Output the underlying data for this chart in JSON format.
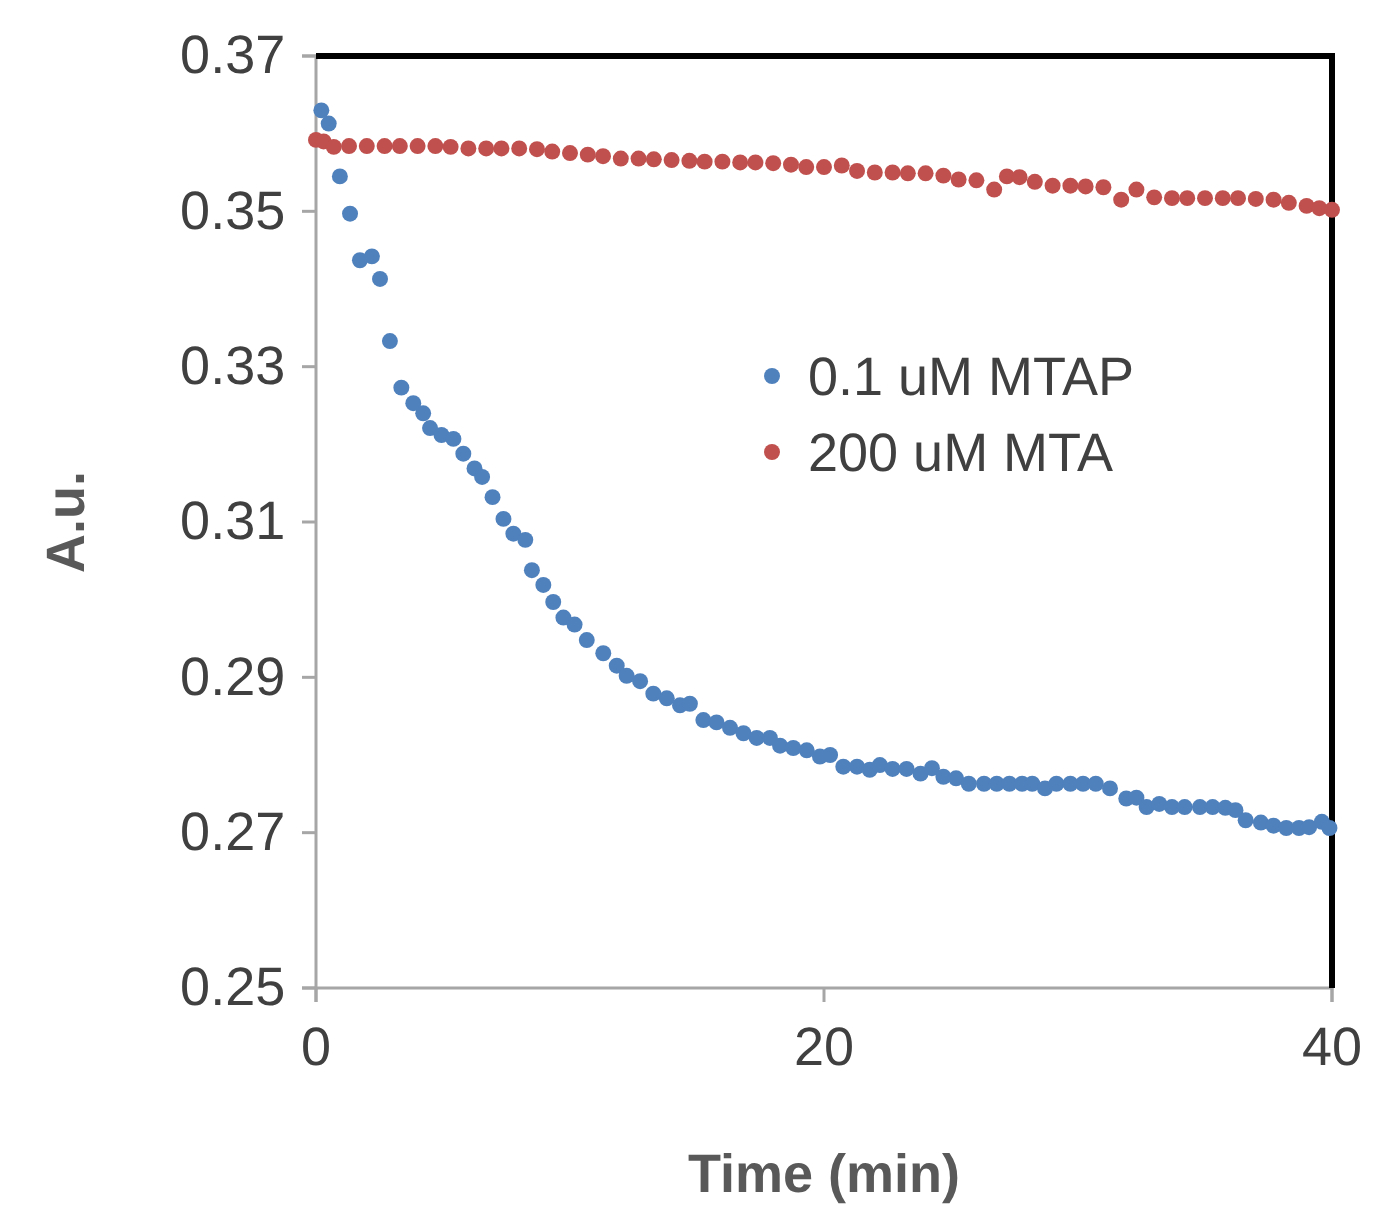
{
  "chart_data": {
    "type": "scatter",
    "xlabel": "Time (min)",
    "ylabel": "A.u.",
    "xlim": [
      0,
      40
    ],
    "xticks": [
      0,
      20,
      40
    ],
    "ylim": [
      0.25,
      0.37
    ],
    "yticks": [
      0.25,
      0.27,
      0.29,
      0.31,
      0.33,
      0.35,
      0.37
    ],
    "grid": false,
    "legend": "top right",
    "marker": "circle",
    "series": [
      {
        "name": "0.1 uM MTAP",
        "color": "#4f81bd",
        "x": [
          0.21,
          0.5,
          0.94,
          1.34,
          1.73,
          2.2,
          2.52,
          2.91,
          3.36,
          3.83,
          4.22,
          4.49,
          4.94,
          5.41,
          5.8,
          6.24,
          6.54,
          6.95,
          7.38,
          7.77,
          8.24,
          8.5,
          8.95,
          9.34,
          9.74,
          10.18,
          10.66,
          11.31,
          11.84,
          12.23,
          12.76,
          13.28,
          13.81,
          14.33,
          14.72,
          15.25,
          15.77,
          16.3,
          16.83,
          17.35,
          17.87,
          18.27,
          18.79,
          19.32,
          19.84,
          20.24,
          20.76,
          21.3,
          21.8,
          22.2,
          22.7,
          23.25,
          23.8,
          24.25,
          24.7,
          25.2,
          25.7,
          26.3,
          26.8,
          27.3,
          27.8,
          28.2,
          28.7,
          29.15,
          29.7,
          30.2,
          30.7,
          31.26,
          31.9,
          32.3,
          32.7,
          33.2,
          33.7,
          34.2,
          34.8,
          35.3,
          35.8,
          36.2,
          36.6,
          37.2,
          37.7,
          38.2,
          38.7,
          39.1,
          39.6,
          39.9
        ],
        "values": [
          0.363,
          0.3613,
          0.3545,
          0.3497,
          0.3437,
          0.3442,
          0.3413,
          0.3333,
          0.3273,
          0.3253,
          0.324,
          0.3221,
          0.3212,
          0.3207,
          0.3188,
          0.3169,
          0.3158,
          0.3132,
          0.3104,
          0.3085,
          0.3077,
          0.3038,
          0.3019,
          0.2997,
          0.2977,
          0.2968,
          0.2948,
          0.2931,
          0.2915,
          0.2902,
          0.2895,
          0.2879,
          0.2873,
          0.2864,
          0.2866,
          0.2845,
          0.2842,
          0.2835,
          0.2828,
          0.2822,
          0.2822,
          0.2812,
          0.2809,
          0.2806,
          0.2798,
          0.28,
          0.2785,
          0.2785,
          0.2781,
          0.2787,
          0.2782,
          0.2782,
          0.2776,
          0.2783,
          0.2772,
          0.277,
          0.2763,
          0.2763,
          0.2763,
          0.2763,
          0.2763,
          0.2763,
          0.2757,
          0.2763,
          0.2763,
          0.2763,
          0.2763,
          0.2757,
          0.2744,
          0.2745,
          0.2733,
          0.2737,
          0.2733,
          0.2733,
          0.2733,
          0.2733,
          0.2732,
          0.2729,
          0.2716,
          0.2713,
          0.2709,
          0.2706,
          0.2706,
          0.2707,
          0.2714,
          0.2706
        ]
      },
      {
        "name": "200 uM MTA",
        "color": "#c0504d",
        "x": [
          0,
          0.3,
          0.7,
          1.3,
          2,
          2.7,
          3.3,
          4,
          4.7,
          5.3,
          6,
          6.7,
          7.3,
          8,
          8.7,
          9.3,
          10,
          10.7,
          11.3,
          12,
          12.7,
          13.3,
          14,
          14.7,
          15.3,
          16,
          16.7,
          17.3,
          18,
          18.7,
          19.3,
          20,
          20.7,
          21.3,
          22,
          22.7,
          23.3,
          24,
          24.7,
          25.3,
          26,
          26.7,
          27.2,
          27.7,
          28.3,
          29,
          29.7,
          30.3,
          31,
          31.7,
          32.3,
          33,
          33.7,
          34.3,
          35,
          35.7,
          36.3,
          37,
          37.7,
          38.3,
          39,
          39.5,
          40
        ],
        "values": [
          0.3592,
          0.359,
          0.3583,
          0.3584,
          0.3584,
          0.3584,
          0.3584,
          0.3584,
          0.3584,
          0.3583,
          0.3581,
          0.3581,
          0.3581,
          0.3581,
          0.358,
          0.3577,
          0.3575,
          0.3573,
          0.3571,
          0.3568,
          0.3568,
          0.3567,
          0.3566,
          0.3565,
          0.3564,
          0.3564,
          0.3563,
          0.3563,
          0.3562,
          0.356,
          0.3557,
          0.3557,
          0.3559,
          0.3552,
          0.355,
          0.355,
          0.3549,
          0.3549,
          0.3546,
          0.3541,
          0.354,
          0.3528,
          0.3545,
          0.3544,
          0.3538,
          0.3533,
          0.3533,
          0.3532,
          0.3531,
          0.3515,
          0.3528,
          0.3518,
          0.3517,
          0.3517,
          0.3517,
          0.3517,
          0.3517,
          0.3516,
          0.3515,
          0.3511,
          0.3507,
          0.3504,
          0.3502
        ]
      }
    ]
  }
}
